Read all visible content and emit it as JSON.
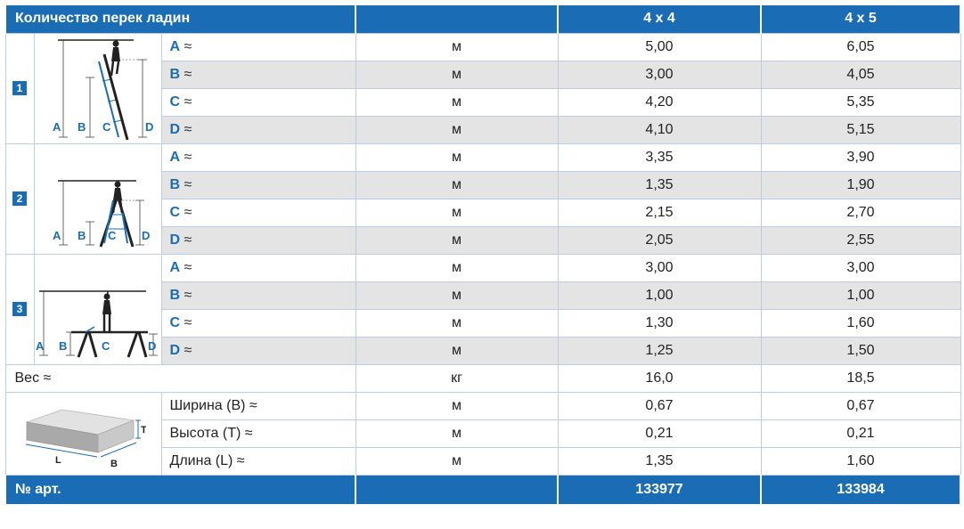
{
  "header": {
    "title": "Количество перек ладин",
    "columns": [
      "4 x 4",
      "4 x 5"
    ]
  },
  "approx_sign": "≈",
  "configs": [
    {
      "index": "1",
      "diagram_labels": [
        "A",
        "B",
        "C",
        "D"
      ],
      "rows": [
        {
          "letter": "A",
          "unit": "м",
          "values": [
            "5,00",
            "6,05"
          ]
        },
        {
          "letter": "B",
          "unit": "м",
          "values": [
            "3,00",
            "4,05"
          ]
        },
        {
          "letter": "C",
          "unit": "м",
          "values": [
            "4,20",
            "5,35"
          ]
        },
        {
          "letter": "D",
          "unit": "м",
          "values": [
            "4,10",
            "5,15"
          ]
        }
      ]
    },
    {
      "index": "2",
      "diagram_labels": [
        "A",
        "B",
        "C",
        "D"
      ],
      "rows": [
        {
          "letter": "A",
          "unit": "м",
          "values": [
            "3,35",
            "3,90"
          ]
        },
        {
          "letter": "B",
          "unit": "м",
          "values": [
            "1,35",
            "1,90"
          ]
        },
        {
          "letter": "C",
          "unit": "м",
          "values": [
            "2,15",
            "2,70"
          ]
        },
        {
          "letter": "D",
          "unit": "м",
          "values": [
            "2,05",
            "2,55"
          ]
        }
      ]
    },
    {
      "index": "3",
      "diagram_labels": [
        "A",
        "B",
        "C",
        "D"
      ],
      "rows": [
        {
          "letter": "A",
          "unit": "м",
          "values": [
            "3,00",
            "3,00"
          ]
        },
        {
          "letter": "B",
          "unit": "м",
          "values": [
            "1,00",
            "1,00"
          ]
        },
        {
          "letter": "C",
          "unit": "м",
          "values": [
            "1,30",
            "1,60"
          ]
        },
        {
          "letter": "D",
          "unit": "м",
          "values": [
            "1,25",
            "1,50"
          ]
        }
      ]
    }
  ],
  "weight": {
    "label": "Вес ≈",
    "unit": "кг",
    "values": [
      "16,0",
      "18,5"
    ]
  },
  "dimensions": {
    "diagram_labels": [
      "T",
      "L",
      "B"
    ],
    "rows": [
      {
        "label": "Ширина (B) ≈",
        "unit": "м",
        "values": [
          "0,67",
          "0,67"
        ]
      },
      {
        "label": "Высота (T) ≈",
        "unit": "м",
        "values": [
          "0,21",
          "0,21"
        ]
      },
      {
        "label": "Длина (L) ≈",
        "unit": "м",
        "values": [
          "1,35",
          "1,60"
        ]
      }
    ]
  },
  "footer": {
    "label": "№ арт.",
    "values": [
      "133977",
      "133984"
    ]
  }
}
